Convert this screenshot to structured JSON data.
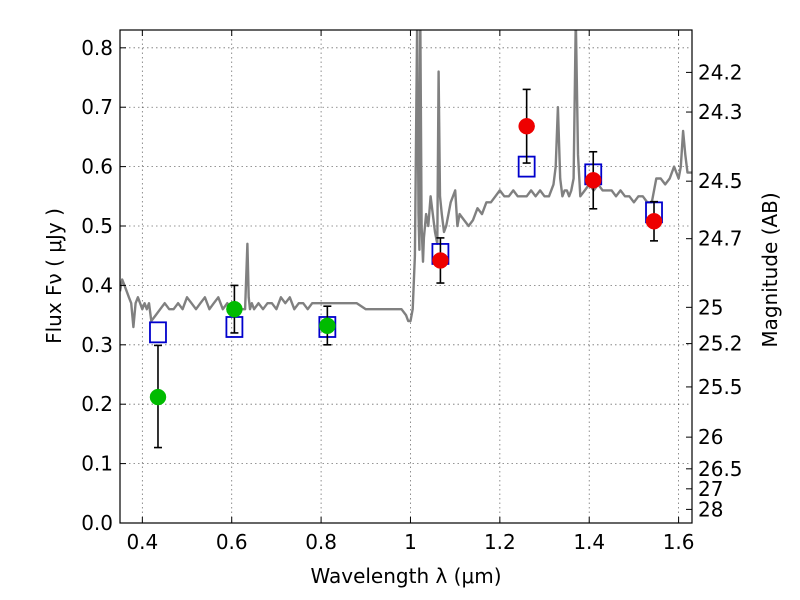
{
  "chart_data": {
    "type": "scatter",
    "xlabel": "Wavelength  λ (μm)",
    "ylabel": "Flux  Fν  ( μJy )",
    "y2label": "Magnitude (AB)",
    "xlim": [
      0.35,
      1.63
    ],
    "ylim": [
      0.0,
      0.83
    ],
    "grid": true,
    "x_ticks": [
      0.4,
      0.6,
      0.8,
      1.0,
      1.2,
      1.4,
      1.6
    ],
    "x_tick_labels": [
      "0.4",
      "0.6",
      "0.8",
      "1",
      "1.2",
      "1.4",
      "1.6"
    ],
    "y_ticks": [
      0.0,
      0.1,
      0.2,
      0.3,
      0.4,
      0.5,
      0.6,
      0.7,
      0.8
    ],
    "y_tick_labels": [
      "0.0",
      "0.1",
      "0.2",
      "0.3",
      "0.4",
      "0.5",
      "0.6",
      "0.7",
      "0.8"
    ],
    "y2_ticks": [
      24.2,
      24.3,
      24.5,
      24.7,
      25,
      25.2,
      25.5,
      26,
      26.5,
      27,
      28
    ],
    "y2_tick_labels": [
      "24.2",
      "24.3",
      "24.5",
      "24.7",
      "25",
      "25.2",
      "25.5",
      "26",
      "26.5",
      "27",
      "28"
    ],
    "colors": {
      "spectrum": "#808080",
      "green": "#00bb00",
      "red": "#ee0000",
      "model": "#0000cc",
      "errorbar": "#000000"
    },
    "spectrum": {
      "x": [
        0.35,
        0.355,
        0.36,
        0.365,
        0.37,
        0.375,
        0.38,
        0.385,
        0.39,
        0.395,
        0.4,
        0.405,
        0.41,
        0.415,
        0.42,
        0.43,
        0.44,
        0.45,
        0.46,
        0.47,
        0.48,
        0.49,
        0.5,
        0.51,
        0.52,
        0.53,
        0.54,
        0.55,
        0.56,
        0.57,
        0.58,
        0.59,
        0.6,
        0.61,
        0.62,
        0.63,
        0.635,
        0.638,
        0.641,
        0.645,
        0.65,
        0.66,
        0.67,
        0.68,
        0.69,
        0.7,
        0.71,
        0.72,
        0.73,
        0.74,
        0.75,
        0.76,
        0.77,
        0.78,
        0.79,
        0.8,
        0.82,
        0.84,
        0.86,
        0.88,
        0.9,
        0.92,
        0.94,
        0.96,
        0.98,
        0.99,
        0.995,
        1.0,
        1.005,
        1.01,
        1.015,
        1.018,
        1.02,
        1.022,
        1.025,
        1.028,
        1.03,
        1.035,
        1.04,
        1.045,
        1.05,
        1.055,
        1.06,
        1.063,
        1.066,
        1.07,
        1.075,
        1.08,
        1.09,
        1.1,
        1.105,
        1.11,
        1.12,
        1.13,
        1.14,
        1.15,
        1.16,
        1.17,
        1.18,
        1.19,
        1.2,
        1.21,
        1.22,
        1.23,
        1.24,
        1.25,
        1.26,
        1.27,
        1.28,
        1.29,
        1.3,
        1.31,
        1.32,
        1.325,
        1.33,
        1.335,
        1.34,
        1.345,
        1.35,
        1.355,
        1.36,
        1.365,
        1.37,
        1.375,
        1.38,
        1.39,
        1.4,
        1.41,
        1.42,
        1.43,
        1.44,
        1.45,
        1.46,
        1.47,
        1.48,
        1.49,
        1.5,
        1.51,
        1.52,
        1.53,
        1.54,
        1.55,
        1.56,
        1.57,
        1.58,
        1.59,
        1.6,
        1.605,
        1.61,
        1.615,
        1.62,
        1.63
      ],
      "y": [
        0.39,
        0.41,
        0.4,
        0.39,
        0.38,
        0.37,
        0.33,
        0.37,
        0.38,
        0.37,
        0.36,
        0.37,
        0.36,
        0.37,
        0.34,
        0.35,
        0.36,
        0.37,
        0.36,
        0.36,
        0.37,
        0.36,
        0.38,
        0.37,
        0.36,
        0.37,
        0.38,
        0.36,
        0.37,
        0.38,
        0.36,
        0.37,
        0.36,
        0.37,
        0.36,
        0.36,
        0.47,
        0.38,
        0.36,
        0.37,
        0.36,
        0.37,
        0.36,
        0.37,
        0.37,
        0.36,
        0.38,
        0.37,
        0.38,
        0.36,
        0.37,
        0.37,
        0.36,
        0.37,
        0.37,
        0.37,
        0.37,
        0.37,
        0.37,
        0.37,
        0.36,
        0.36,
        0.36,
        0.36,
        0.36,
        0.35,
        0.34,
        0.34,
        0.36,
        0.45,
        0.85,
        0.52,
        0.46,
        0.85,
        0.5,
        0.44,
        0.48,
        0.52,
        0.5,
        0.55,
        0.52,
        0.49,
        0.47,
        0.76,
        0.55,
        0.52,
        0.49,
        0.5,
        0.54,
        0.56,
        0.5,
        0.52,
        0.51,
        0.5,
        0.51,
        0.53,
        0.52,
        0.54,
        0.54,
        0.55,
        0.56,
        0.55,
        0.55,
        0.56,
        0.55,
        0.55,
        0.55,
        0.56,
        0.55,
        0.56,
        0.55,
        0.55,
        0.57,
        0.6,
        0.7,
        0.58,
        0.55,
        0.56,
        0.56,
        0.55,
        0.56,
        0.58,
        0.85,
        0.62,
        0.55,
        0.56,
        0.57,
        0.56,
        0.57,
        0.56,
        0.56,
        0.56,
        0.55,
        0.56,
        0.55,
        0.55,
        0.54,
        0.55,
        0.55,
        0.54,
        0.54,
        0.58,
        0.58,
        0.57,
        0.58,
        0.6,
        0.58,
        0.6,
        0.66,
        0.62,
        0.59,
        0.59
      ]
    },
    "green_points": [
      {
        "x": 0.435,
        "y": 0.212,
        "yerr_low": 0.085,
        "yerr_high": 0.087
      },
      {
        "x": 0.606,
        "y": 0.36,
        "yerr_low": 0.04,
        "yerr_high": 0.04
      },
      {
        "x": 0.814,
        "y": 0.332,
        "yerr_low": 0.032,
        "yerr_high": 0.033
      }
    ],
    "red_points": [
      {
        "x": 1.067,
        "y": 0.442,
        "yerr_low": 0.038,
        "yerr_high": 0.038
      },
      {
        "x": 1.26,
        "y": 0.668,
        "yerr_low": 0.062,
        "yerr_high": 0.062
      },
      {
        "x": 1.409,
        "y": 0.577,
        "yerr_low": 0.048,
        "yerr_high": 0.048
      },
      {
        "x": 1.545,
        "y": 0.508,
        "yerr_low": 0.033,
        "yerr_high": 0.033
      }
    ],
    "model_squares": [
      {
        "x": 0.435,
        "y": 0.321
      },
      {
        "x": 0.606,
        "y": 0.33
      },
      {
        "x": 0.814,
        "y": 0.33
      },
      {
        "x": 1.067,
        "y": 0.453
      },
      {
        "x": 1.26,
        "y": 0.6
      },
      {
        "x": 1.409,
        "y": 0.587
      },
      {
        "x": 1.545,
        "y": 0.523
      }
    ]
  }
}
